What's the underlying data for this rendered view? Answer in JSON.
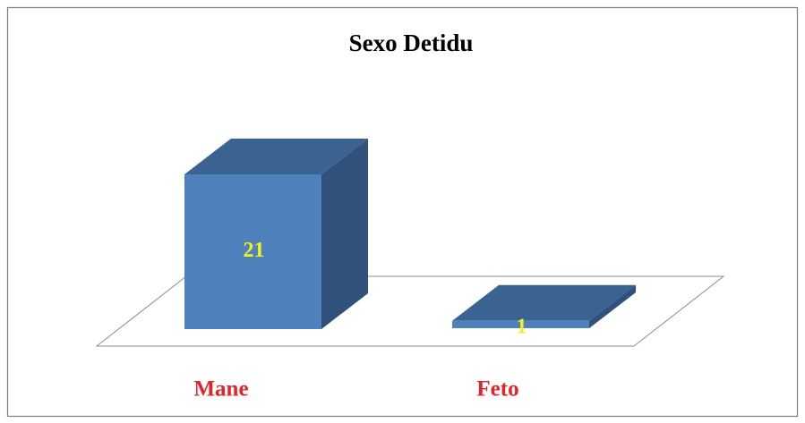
{
  "chart_data": {
    "type": "bar3d",
    "title": "Sexo Detidu",
    "categories": [
      "Mane",
      "Feto"
    ],
    "values": [
      21,
      1
    ],
    "color": "#4f81bd",
    "top_color": "#3b6392",
    "side_color": "#30527a",
    "label_color": "#f2f21c",
    "category_color": "#e3242b"
  }
}
